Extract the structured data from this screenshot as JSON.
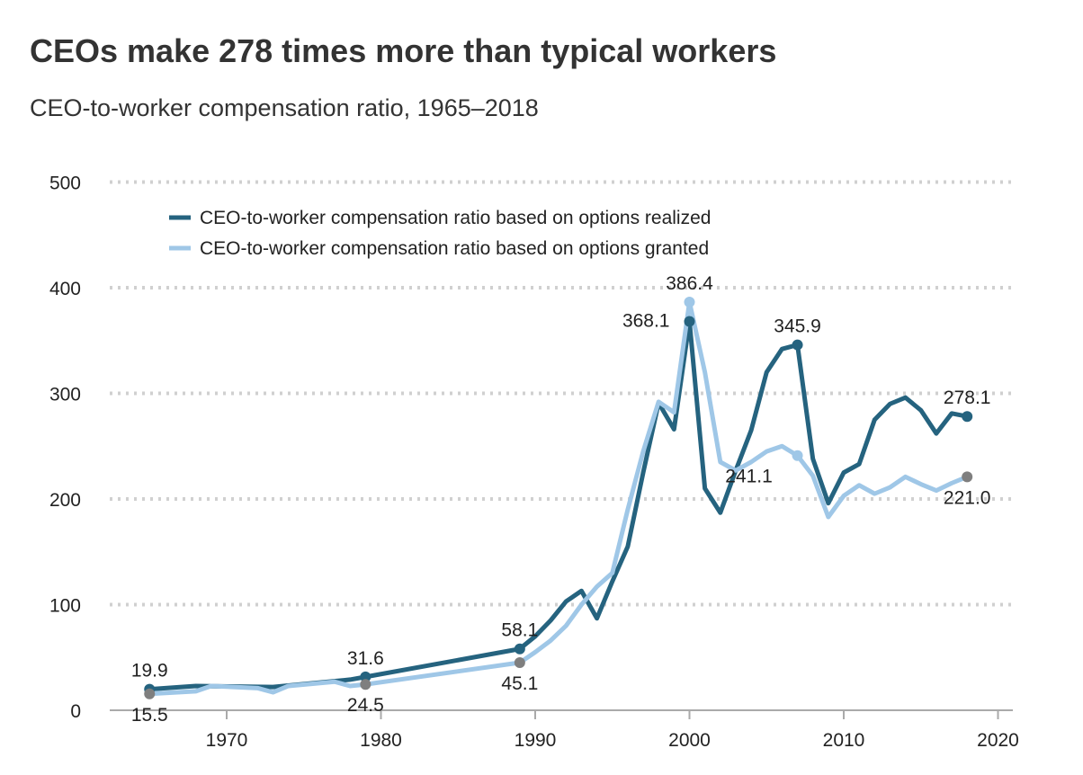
{
  "chart_data": {
    "type": "line",
    "title": "CEOs make 278 times more than typical workers",
    "subtitle": "CEO-to-worker compensation ratio, 1965–2018",
    "xlabel": "",
    "ylabel": "",
    "xlim": [
      1962,
      2021
    ],
    "ylim": [
      0,
      500
    ],
    "x_ticks": [
      1970,
      1980,
      1990,
      2000,
      2010,
      2020
    ],
    "y_ticks": [
      0,
      100,
      200,
      300,
      400,
      500
    ],
    "grid": true,
    "legend_position": "top-left",
    "colors": {
      "realized": "#25637f",
      "granted": "#9fc7e7",
      "grey_dot": "#7f7f7f"
    },
    "series": [
      {
        "name": "CEO-to-worker compensation ratio based on options realized",
        "key": "realized",
        "x": [
          1965,
          1968,
          1973,
          1978,
          1979,
          1989,
          1990,
          1991,
          1992,
          1993,
          1994,
          1995,
          1996,
          1997,
          1998,
          1999,
          2000,
          2001,
          2002,
          2003,
          2004,
          2005,
          2006,
          2007,
          2008,
          2009,
          2010,
          2011,
          2012,
          2013,
          2014,
          2015,
          2016,
          2017,
          2018
        ],
        "y": [
          19.9,
          23,
          22,
          29,
          31.6,
          58.1,
          70,
          85,
          103,
          113,
          87,
          122,
          155,
          225,
          291,
          266,
          368.1,
          210,
          187,
          227,
          265,
          320,
          342,
          345.9,
          238,
          196,
          225,
          233,
          275,
          290,
          296,
          284,
          262,
          281,
          278.1
        ]
      },
      {
        "name": "CEO-to-worker compensation ratio based on options granted",
        "key": "granted",
        "x": [
          1965,
          1968,
          1969,
          1972,
          1973,
          1974,
          1977,
          1978,
          1979,
          1989,
          1990,
          1991,
          1992,
          1993,
          1994,
          1995,
          1996,
          1997,
          1998,
          1999,
          2000,
          2001,
          2002,
          2003,
          2004,
          2005,
          2006,
          2007,
          2008,
          2009,
          2010,
          2011,
          2012,
          2013,
          2014,
          2015,
          2016,
          2017,
          2018
        ],
        "y": [
          15.5,
          18,
          23,
          21,
          17,
          23,
          27,
          23,
          24.5,
          45.1,
          55,
          66,
          80,
          100,
          117,
          130,
          190,
          245,
          292,
          282,
          386.4,
          320,
          235,
          227,
          235,
          245,
          250,
          241.1,
          222,
          183,
          203,
          213,
          205,
          211,
          221,
          214,
          208,
          215,
          221.0
        ]
      }
    ],
    "annotations": [
      {
        "series": "realized",
        "x": 1965,
        "label": "19.9",
        "pos": "above",
        "dot": "realized"
      },
      {
        "series": "granted",
        "x": 1965,
        "label": "15.5",
        "pos": "below",
        "dot": "grey"
      },
      {
        "series": "realized",
        "x": 1979,
        "label": "31.6",
        "pos": "above",
        "dot": "realized"
      },
      {
        "series": "granted",
        "x": 1979,
        "label": "24.5",
        "pos": "below",
        "dot": "grey"
      },
      {
        "series": "realized",
        "x": 1989,
        "label": "58.1",
        "pos": "above",
        "dot": "realized"
      },
      {
        "series": "granted",
        "x": 1989,
        "label": "45.1",
        "pos": "below",
        "dot": "grey"
      },
      {
        "series": "realized",
        "x": 2000,
        "label": "368.1",
        "pos": "left",
        "dot": "realized"
      },
      {
        "series": "granted",
        "x": 2000,
        "label": "386.4",
        "pos": "above",
        "dot": "granted"
      },
      {
        "series": "realized",
        "x": 2007,
        "label": "345.9",
        "pos": "above",
        "dot": "realized"
      },
      {
        "series": "granted",
        "x": 2007,
        "label": "241.1",
        "pos": "belowleft",
        "dot": "granted"
      },
      {
        "series": "realized",
        "x": 2018,
        "label": "278.1",
        "pos": "above",
        "dot": "realized"
      },
      {
        "series": "granted",
        "x": 2018,
        "label": "221.0",
        "pos": "below",
        "dot": "grey"
      }
    ]
  }
}
